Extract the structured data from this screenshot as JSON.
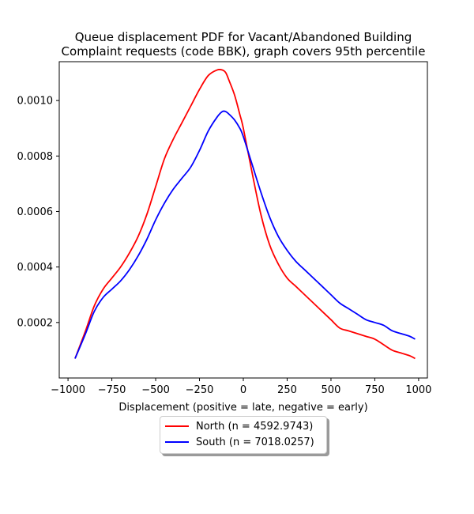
{
  "chart_data": {
    "type": "line",
    "title": "Queue displacement PDF for Vacant/Abandoned Building\nComplaint  requests (code BBK), graph covers 95th percentile",
    "xlabel": "Displacement (positive = late, negative = early)",
    "ylabel": "",
    "xlim": [
      -1050,
      1050
    ],
    "ylim": [
      0.0,
      0.00114
    ],
    "grid": false,
    "legend_position": "below",
    "x_ticks": [
      -1000,
      -750,
      -500,
      -250,
      0,
      250,
      500,
      750,
      1000
    ],
    "x_tick_labels": [
      "−1000",
      "−750",
      "−500",
      "−250",
      "0",
      "250",
      "500",
      "750",
      "1000"
    ],
    "y_ticks": [
      0.0002,
      0.0004,
      0.0006,
      0.0008,
      0.001
    ],
    "y_tick_labels": [
      "0.0002",
      "0.0004",
      "0.0006",
      "0.0008",
      "0.0010"
    ],
    "series": [
      {
        "name": "North (n = 4592.9743)",
        "color": "#ff0000",
        "x": [
          -960,
          -900,
          -850,
          -800,
          -750,
          -700,
          -650,
          -600,
          -550,
          -500,
          -450,
          -400,
          -350,
          -300,
          -250,
          -200,
          -150,
          -120,
          -100,
          -80,
          -50,
          -20,
          0,
          50,
          100,
          150,
          200,
          250,
          300,
          350,
          400,
          450,
          500,
          550,
          600,
          650,
          700,
          750,
          800,
          850,
          900,
          950,
          980
        ],
        "y": [
          7e-05,
          0.00017,
          0.00026,
          0.00032,
          0.00036,
          0.0004,
          0.00045,
          0.00051,
          0.00059,
          0.00069,
          0.00079,
          0.00086,
          0.00092,
          0.00098,
          0.00104,
          0.00109,
          0.00111,
          0.00111,
          0.0011,
          0.00107,
          0.00102,
          0.00095,
          0.0009,
          0.00074,
          0.00059,
          0.00048,
          0.00041,
          0.00036,
          0.00033,
          0.0003,
          0.00027,
          0.00024,
          0.00021,
          0.00018,
          0.00017,
          0.00016,
          0.00015,
          0.00014,
          0.00012,
          0.0001,
          9e-05,
          8e-05,
          7e-05
        ]
      },
      {
        "name": "South (n = 7018.0257)",
        "color": "#0000ff",
        "x": [
          -960,
          -900,
          -850,
          -800,
          -750,
          -700,
          -650,
          -600,
          -550,
          -500,
          -450,
          -400,
          -350,
          -300,
          -250,
          -200,
          -150,
          -120,
          -100,
          -80,
          -50,
          -20,
          0,
          50,
          100,
          150,
          200,
          250,
          300,
          350,
          400,
          450,
          500,
          550,
          600,
          650,
          700,
          750,
          800,
          850,
          900,
          950,
          980
        ],
        "y": [
          7e-05,
          0.00016,
          0.00024,
          0.00029,
          0.00032,
          0.00035,
          0.00039,
          0.00044,
          0.0005,
          0.00057,
          0.00063,
          0.00068,
          0.00072,
          0.00076,
          0.00082,
          0.00089,
          0.00094,
          0.00096,
          0.00096,
          0.00095,
          0.00093,
          0.0009,
          0.00087,
          0.00077,
          0.00067,
          0.00058,
          0.00051,
          0.00046,
          0.00042,
          0.00039,
          0.00036,
          0.00033,
          0.0003,
          0.00027,
          0.00025,
          0.00023,
          0.00021,
          0.0002,
          0.00019,
          0.00017,
          0.00016,
          0.00015,
          0.00014
        ]
      }
    ]
  }
}
